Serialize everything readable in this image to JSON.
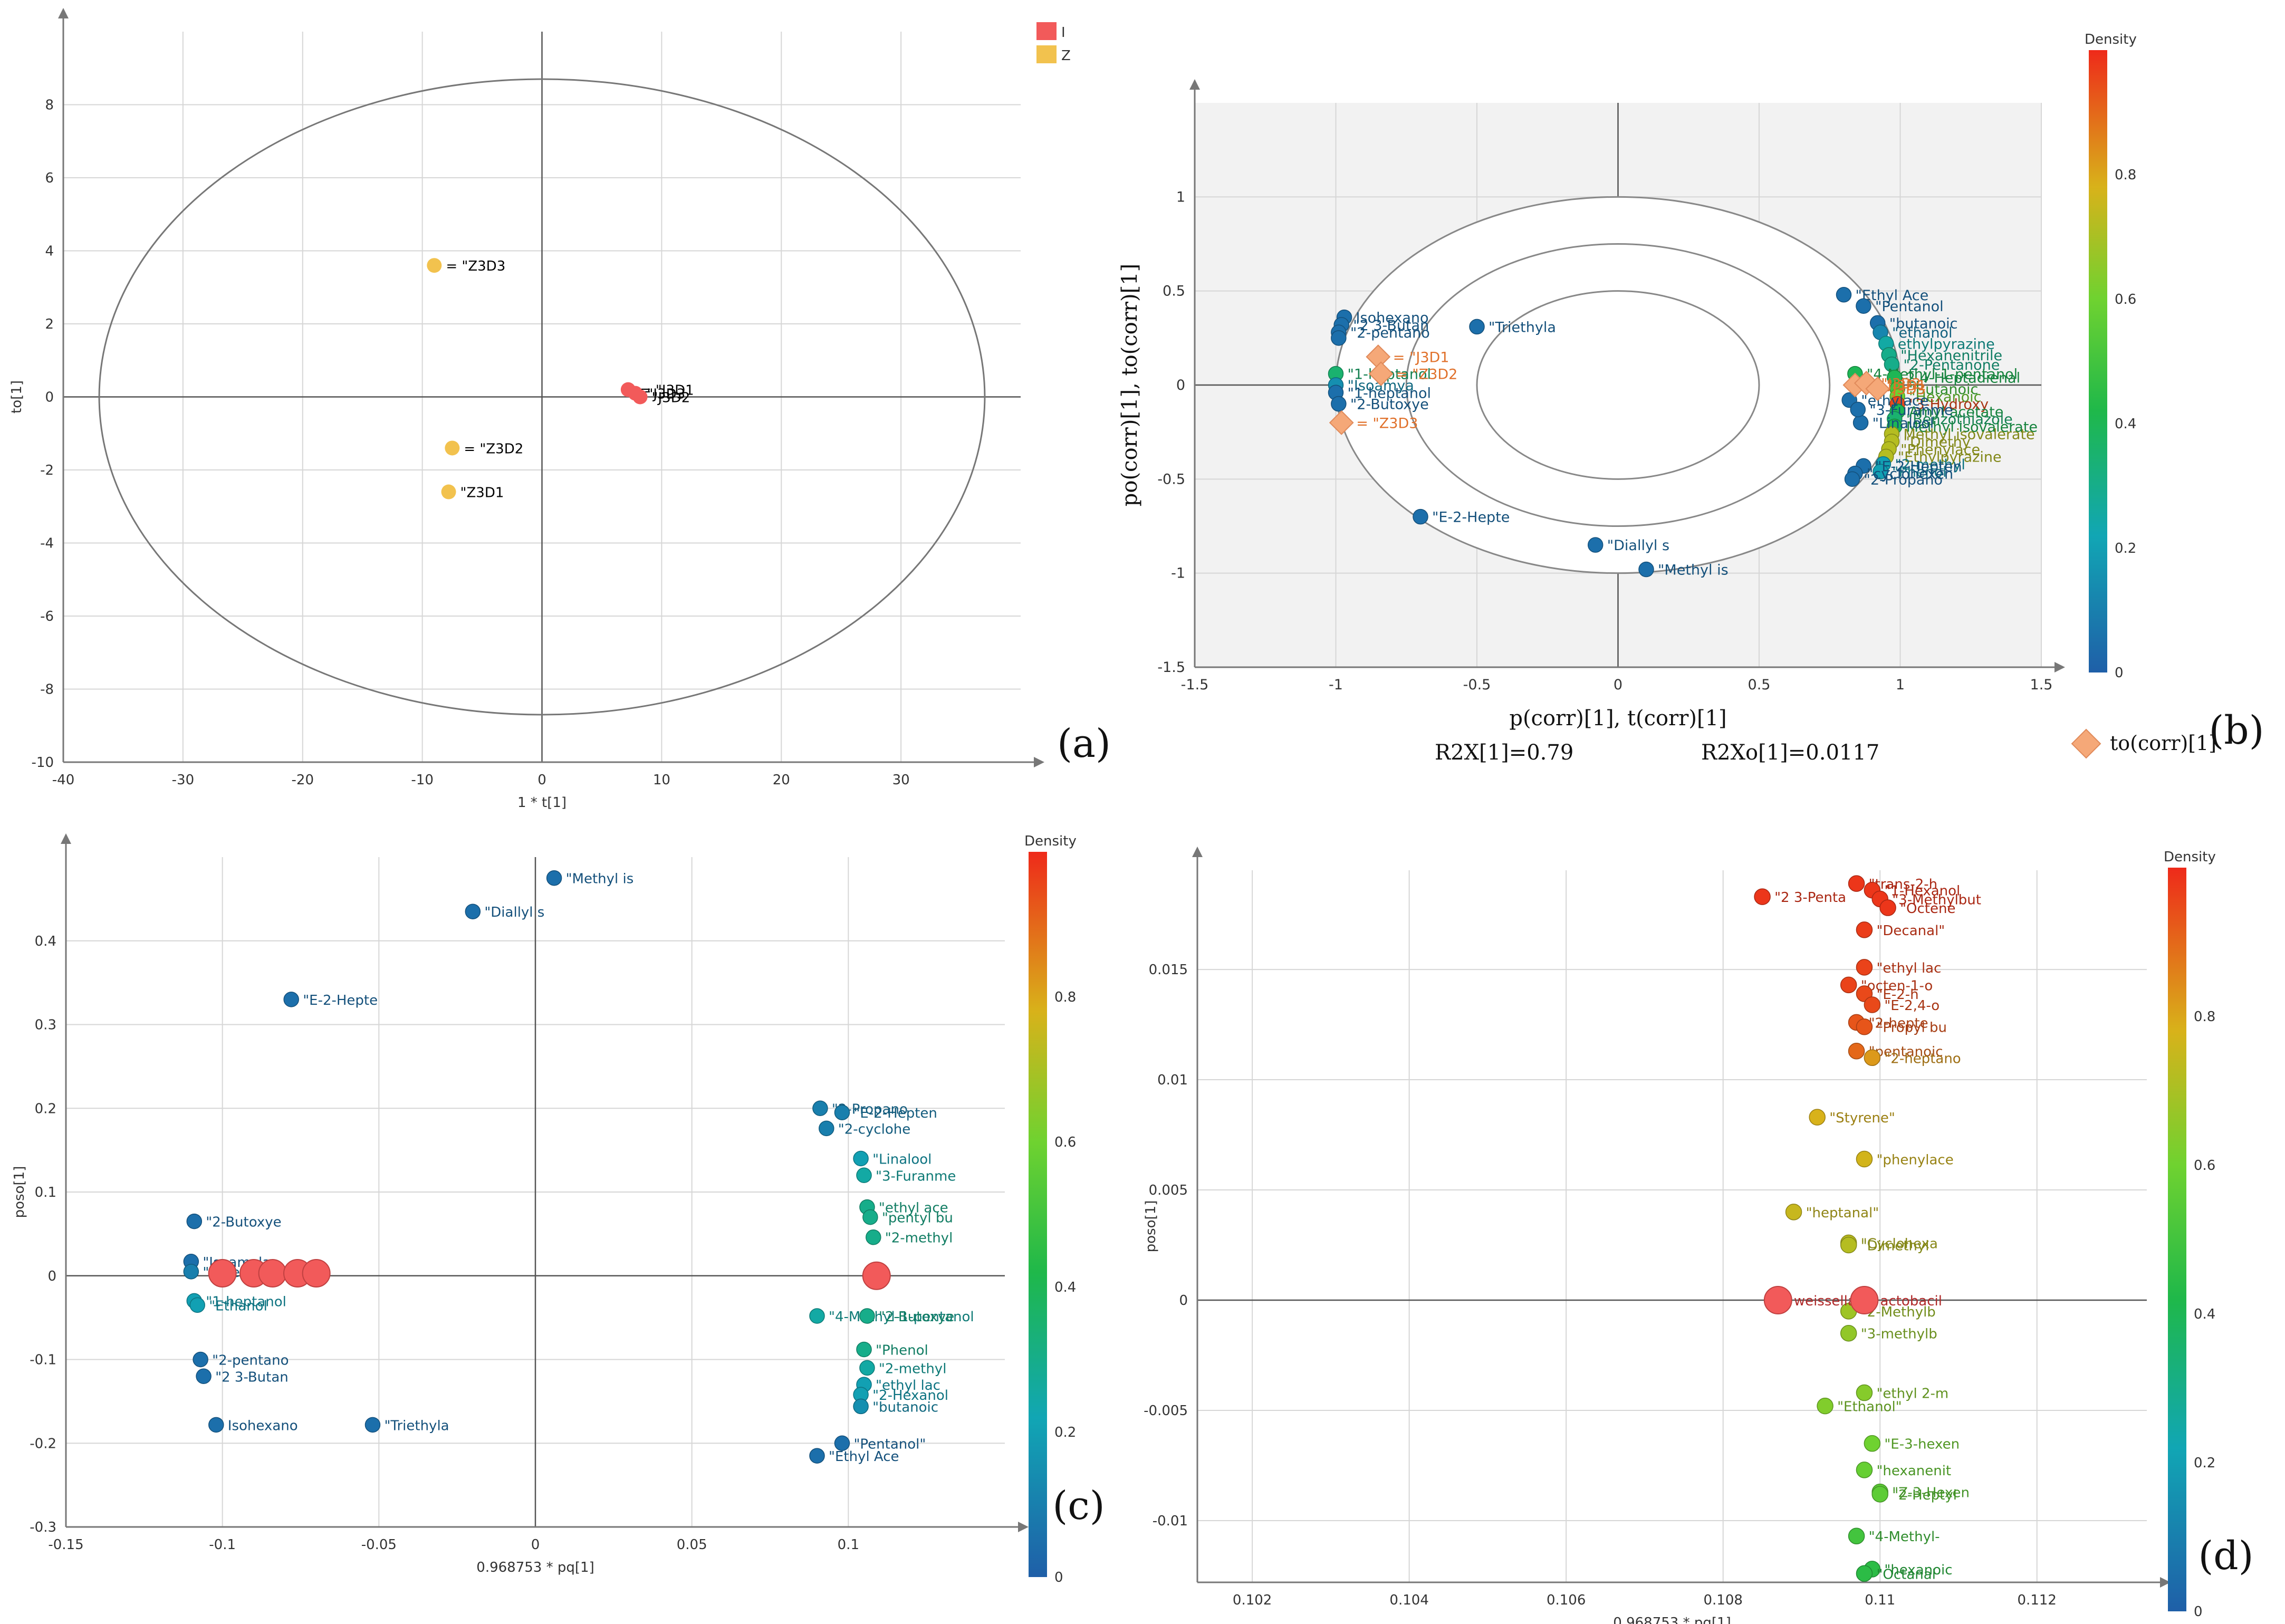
{
  "colors": {
    "I": "#f25a5a",
    "Z": "#f2c24e",
    "diamond": "#f5a878",
    "axis": "#555555",
    "grid": "#d2d2d2"
  },
  "chart_data": [
    {
      "type": "scatter",
      "panel": "(a)",
      "xlabel": "1 * t[1]",
      "ylabel": "to[1]",
      "xlim": [
        -40,
        40
      ],
      "ylim": [
        -10,
        10
      ],
      "xticks": [
        "-40",
        "-30",
        "-20",
        "-10",
        "0",
        "10",
        "20",
        "30"
      ],
      "yticks": [
        "8",
        "6",
        "4",
        "2",
        "0",
        "-2",
        "-4",
        "-6",
        "-8",
        "-10"
      ],
      "legend": [
        {
          "name": "I",
          "color": "#f25a5a"
        },
        {
          "name": "Z",
          "color": "#f2c24e"
        }
      ],
      "ellipse": {
        "cx": 0,
        "cy": 0,
        "rx": 37,
        "ry": 8.7
      },
      "points": [
        {
          "x": -9,
          "y": 3.6,
          "label": "= \"Z3D3",
          "group": "Z"
        },
        {
          "x": -7.5,
          "y": -1.4,
          "label": "= \"Z3D2",
          "group": "Z"
        },
        {
          "x": -7.8,
          "y": -2.6,
          "label": "\"Z3D1",
          "group": "Z"
        },
        {
          "x": 7.2,
          "y": 0.2,
          "label": "= \"J3D1",
          "group": "I"
        },
        {
          "x": 7.8,
          "y": 0.1,
          "label": "\"J3D3",
          "group": "I"
        },
        {
          "x": 8.2,
          "y": 0.0,
          "label": "\"J3D2",
          "group": "I"
        }
      ]
    },
    {
      "type": "scatter",
      "panel": "(b)",
      "xlabel": "p(corr)[1], t(corr)[1]",
      "ylabel": "po(corr)[1], to(corr)[1]",
      "xlim": [
        -1.5,
        1.5
      ],
      "ylim": [
        -1.5,
        1.5
      ],
      "xticks": [
        "-1.5",
        "-1",
        "-0.5",
        "0",
        "0.5",
        "1",
        "1.5"
      ],
      "yticks": [
        "1",
        "0.5",
        "0",
        "-0.5",
        "-1",
        "-1.5"
      ],
      "stats": {
        "r2x": "R2X[1]=0.79",
        "r2xo": "R2Xo[1]=0.0117"
      },
      "colorbar": {
        "title": "Density",
        "ticks": [
          "0.8",
          "0.6",
          "0.4",
          "0.2",
          "0"
        ]
      },
      "legend": [
        {
          "name": "to(corr)[1]",
          "shape": "diamond"
        }
      ],
      "circles": [
        1.0,
        0.75,
        0.5
      ],
      "points": [
        {
          "x": -0.97,
          "y": 0.36,
          "label": "Isohexano",
          "density": 0.05
        },
        {
          "x": -0.98,
          "y": 0.32,
          "label": "\"2 3-Butan",
          "density": 0.05
        },
        {
          "x": -0.99,
          "y": 0.28,
          "label": "\"2-pentano",
          "density": 0.05
        },
        {
          "x": -0.99,
          "y": 0.25,
          "label": "",
          "density": 0.05
        },
        {
          "x": -1.0,
          "y": 0.06,
          "label": "\"1-heptanol",
          "density": 0.35
        },
        {
          "x": -1.0,
          "y": 0.0,
          "label": "\"Isoamya",
          "density": 0.15
        },
        {
          "x": -1.0,
          "y": -0.04,
          "label": "\"1-heptanol",
          "density": 0.05
        },
        {
          "x": -0.99,
          "y": -0.1,
          "label": "\"2-Butoxye",
          "density": 0.05
        },
        {
          "x": -0.5,
          "y": 0.31,
          "label": "\"Triethyla",
          "density": 0.05
        },
        {
          "x": -0.7,
          "y": -0.7,
          "label": "\"E-2-Hepte",
          "density": 0.05
        },
        {
          "x": -0.08,
          "y": -0.85,
          "label": "\"Diallyl s",
          "density": 0.05
        },
        {
          "x": 0.1,
          "y": -0.98,
          "label": "\"Methyl is",
          "density": 0.05
        },
        {
          "x": 0.8,
          "y": 0.48,
          "label": "\"Ethyl Ace",
          "density": 0.05
        },
        {
          "x": 0.87,
          "y": 0.42,
          "label": "\"Pentanol",
          "density": 0.05
        },
        {
          "x": 0.92,
          "y": 0.33,
          "label": "\"butanoic",
          "density": 0.05
        },
        {
          "x": 0.93,
          "y": 0.28,
          "label": "\"ethanol",
          "density": 0.12
        },
        {
          "x": 0.95,
          "y": 0.22,
          "label": "ethylpyrazine",
          "density": 0.25
        },
        {
          "x": 0.96,
          "y": 0.16,
          "label": "\"Hexanenitrile",
          "density": 0.3
        },
        {
          "x": 0.97,
          "y": 0.11,
          "label": "\"2-Pentanone",
          "density": 0.3
        },
        {
          "x": 0.84,
          "y": 0.06,
          "label": "\"4-Methyl-1-pentanol",
          "density": 0.4
        },
        {
          "x": 0.98,
          "y": 0.04,
          "label": "2,4-Heptadienal",
          "density": 0.4
        },
        {
          "x": 0.99,
          "y": -0.02,
          "label": "\"Butanoic",
          "density": 0.5
        },
        {
          "x": 0.99,
          "y": -0.06,
          "label": "\"Hexanoic",
          "density": 0.6
        },
        {
          "x": 0.99,
          "y": -0.1,
          "label": "\"3-Hydroxy",
          "density": 0.95
        },
        {
          "x": 0.99,
          "y": -0.14,
          "label": "Amyl acetate",
          "density": 0.4
        },
        {
          "x": 0.98,
          "y": -0.18,
          "label": "\"Benzothiazole",
          "density": 0.35
        },
        {
          "x": 0.98,
          "y": -0.22,
          "label": "Methyl isovalerate",
          "density": 0.4
        },
        {
          "x": 0.97,
          "y": -0.26,
          "label": "Methyl isovalerate",
          "density": 0.72
        },
        {
          "x": 0.97,
          "y": -0.3,
          "label": "\"Dimethy",
          "density": 0.72
        },
        {
          "x": 0.96,
          "y": -0.34,
          "label": "\"Phenylace",
          "density": 0.72
        },
        {
          "x": 0.95,
          "y": -0.38,
          "label": "\"Ethylpyrazine",
          "density": 0.72
        },
        {
          "x": 0.94,
          "y": -0.42,
          "label": "\"2-methyl",
          "density": 0.2
        },
        {
          "x": 0.93,
          "y": -0.46,
          "label": "\"Phenol",
          "density": 0.2
        },
        {
          "x": 0.86,
          "y": -0.2,
          "label": "\"Linalool",
          "density": 0.05
        },
        {
          "x": 0.87,
          "y": -0.43,
          "label": "\"E-2-Hepten",
          "density": 0.05
        },
        {
          "x": 0.84,
          "y": -0.47,
          "label": "\"cyclohexen",
          "density": 0.05
        },
        {
          "x": 0.83,
          "y": -0.5,
          "label": "\"2-Propano",
          "density": 0.05
        },
        {
          "x": 0.82,
          "y": -0.08,
          "label": "\"ethylace",
          "density": 0.05
        },
        {
          "x": 0.85,
          "y": -0.13,
          "label": "\"3-Furanme",
          "density": 0.05
        }
      ],
      "diamonds": [
        {
          "x": -0.85,
          "y": 0.15,
          "label": "= \"J3D1"
        },
        {
          "x": -0.84,
          "y": 0.06,
          "label": "= \"Z3D2"
        },
        {
          "x": -0.98,
          "y": -0.2,
          "label": "= \"Z3D3"
        },
        {
          "x": 0.84,
          "y": 0.0,
          "label": "= \"J3D1"
        },
        {
          "x": 0.88,
          "y": 0.01,
          "label": "\"J3D2"
        },
        {
          "x": 0.92,
          "y": -0.02,
          "label": "J3D3"
        }
      ]
    },
    {
      "type": "scatter",
      "panel": "(c)",
      "xlabel": "0.968753 * pq[1]",
      "ylabel": "poso[1]",
      "xlim": [
        -0.15,
        0.15
      ],
      "ylim": [
        -0.3,
        0.5
      ],
      "xticks": [
        "-0.15",
        "-0.1",
        "-0.05",
        "0",
        "0.05",
        "0.1"
      ],
      "yticks": [
        "0.4",
        "0.3",
        "0.2",
        "0.1",
        "0",
        "-0.1",
        "-0.2",
        "-0.3"
      ],
      "colorbar": {
        "title": "Density",
        "ticks": [
          "0.8",
          "0.6",
          "0.4",
          "0.2",
          "0"
        ]
      },
      "points": [
        {
          "x": 0.006,
          "y": 0.475,
          "label": "\"Methyl is",
          "density": 0.05
        },
        {
          "x": -0.02,
          "y": 0.435,
          "label": "\"Diallyl s",
          "density": 0.05
        },
        {
          "x": -0.078,
          "y": 0.33,
          "label": "\"E-2-Hepte",
          "density": 0.05
        },
        {
          "x": -0.109,
          "y": 0.065,
          "label": "\"2-Butoxye",
          "density": 0.05
        },
        {
          "x": -0.11,
          "y": 0.017,
          "label": "\"Isoamyla",
          "density": 0.05
        },
        {
          "x": -0.11,
          "y": 0.005,
          "label": "\"1-heptanol",
          "density": 0.1
        },
        {
          "x": -0.109,
          "y": -0.03,
          "label": "\"1-heptanol",
          "density": 0.2
        },
        {
          "x": -0.108,
          "y": -0.035,
          "label": "\"Ethanol",
          "density": 0.2
        },
        {
          "x": -0.107,
          "y": -0.1,
          "label": "\"2-pentano",
          "density": 0.05
        },
        {
          "x": -0.106,
          "y": -0.12,
          "label": "\"2 3-Butan",
          "density": 0.05
        },
        {
          "x": -0.102,
          "y": -0.178,
          "label": "Isohexano",
          "density": 0.05
        },
        {
          "x": -0.052,
          "y": -0.178,
          "label": "\"Triethyla",
          "density": 0.05
        },
        {
          "x": 0.091,
          "y": 0.2,
          "label": "\"2-Propano",
          "density": 0.1
        },
        {
          "x": 0.098,
          "y": 0.195,
          "label": "\"E-2-Hepten",
          "density": 0.1
        },
        {
          "x": 0.093,
          "y": 0.176,
          "label": "\"2-cyclohe",
          "density": 0.1
        },
        {
          "x": 0.104,
          "y": 0.14,
          "label": "\"Linalool",
          "density": 0.2
        },
        {
          "x": 0.105,
          "y": 0.12,
          "label": "\"3-Furanme",
          "density": 0.25
        },
        {
          "x": 0.106,
          "y": 0.082,
          "label": "\"ethyl ace",
          "density": 0.3
        },
        {
          "x": 0.107,
          "y": 0.07,
          "label": "\"pentyl bu",
          "density": 0.3
        },
        {
          "x": 0.108,
          "y": 0.046,
          "label": "\"2-methyl",
          "density": 0.3
        },
        {
          "x": 0.09,
          "y": -0.048,
          "label": "\"4-Methyl-1-pentanol",
          "density": 0.25
        },
        {
          "x": 0.106,
          "y": -0.048,
          "label": "\"2-Butoxye",
          "density": 0.3
        },
        {
          "x": 0.105,
          "y": -0.088,
          "label": "\"Phenol",
          "density": 0.3
        },
        {
          "x": 0.106,
          "y": -0.11,
          "label": "\"2-methyl",
          "density": 0.25
        },
        {
          "x": 0.105,
          "y": -0.13,
          "label": "\"ethyl lac",
          "density": 0.2
        },
        {
          "x": 0.104,
          "y": -0.142,
          "label": "\"2-Hexanol",
          "density": 0.2
        },
        {
          "x": 0.104,
          "y": -0.156,
          "label": "\"butanoic",
          "density": 0.15
        },
        {
          "x": 0.098,
          "y": -0.2,
          "label": "\"Pentanol\"",
          "density": 0.05
        },
        {
          "x": 0.09,
          "y": -0.215,
          "label": "\"Ethyl Ace",
          "density": 0.05
        }
      ],
      "highlights": [
        {
          "x": -0.1,
          "y": 0.003,
          "label": "",
          "group": "I"
        },
        {
          "x": -0.09,
          "y": 0.003,
          "label": "",
          "group": "I"
        },
        {
          "x": -0.084,
          "y": 0.003,
          "label": "",
          "group": "I"
        },
        {
          "x": -0.076,
          "y": 0.003,
          "label": "",
          "group": "I"
        },
        {
          "x": -0.07,
          "y": 0.003,
          "label": "",
          "group": "I"
        },
        {
          "x": 0.109,
          "y": 0.0,
          "label": "",
          "group": "I"
        }
      ]
    },
    {
      "type": "scatter",
      "panel": "(d)",
      "xlabel": "0.968753 * pq[1]",
      "ylabel": "poso[1]",
      "xlim": [
        0.1013,
        0.1134
      ],
      "ylim": [
        -0.0128,
        0.0195
      ],
      "xticks": [
        "0.102",
        "0.104",
        "0.106",
        "0.108",
        "0.11",
        "0.112"
      ],
      "yticks": [
        "0.015",
        "0.01",
        "0.005",
        "0",
        "-0.005",
        "-0.01"
      ],
      "colorbar": {
        "title": "Density",
        "ticks": [
          "0.8",
          "0.6",
          "0.4",
          "0.2",
          "0"
        ]
      },
      "points": [
        {
          "x": 0.1085,
          "y": 0.0183,
          "label": "\"2 3-Penta",
          "density": 0.98
        },
        {
          "x": 0.1097,
          "y": 0.0189,
          "label": "\"trans-2-h",
          "density": 0.98
        },
        {
          "x": 0.1099,
          "y": 0.0186,
          "label": "\"1-Hexanol",
          "density": 0.98
        },
        {
          "x": 0.11,
          "y": 0.0182,
          "label": "\"3-Methylbut",
          "density": 0.98
        },
        {
          "x": 0.1101,
          "y": 0.0178,
          "label": "\"Octene",
          "density": 0.98
        },
        {
          "x": 0.1098,
          "y": 0.0168,
          "label": "\"Decanal\"",
          "density": 0.97
        },
        {
          "x": 0.1098,
          "y": 0.0151,
          "label": "\"ethyl lac",
          "density": 0.96
        },
        {
          "x": 0.1096,
          "y": 0.0143,
          "label": "\"octen-1-o",
          "density": 0.96
        },
        {
          "x": 0.1098,
          "y": 0.0139,
          "label": "\"E-2-h",
          "density": 0.95
        },
        {
          "x": 0.1099,
          "y": 0.0134,
          "label": "\"E-2,4-o",
          "density": 0.95
        },
        {
          "x": 0.1097,
          "y": 0.0126,
          "label": "\"2-hepte",
          "density": 0.93
        },
        {
          "x": 0.1098,
          "y": 0.0124,
          "label": "\"Propyl bu",
          "density": 0.93
        },
        {
          "x": 0.1097,
          "y": 0.0113,
          "label": "\"pentanoic",
          "density": 0.9
        },
        {
          "x": 0.1099,
          "y": 0.011,
          "label": "\"2-heptano",
          "density": 0.82
        },
        {
          "x": 0.1092,
          "y": 0.0083,
          "label": "\"Styrene\"",
          "density": 0.78
        },
        {
          "x": 0.1098,
          "y": 0.0064,
          "label": "\"phenylace",
          "density": 0.77
        },
        {
          "x": 0.1089,
          "y": 0.004,
          "label": "\"heptanal\"",
          "density": 0.75
        },
        {
          "x": 0.1096,
          "y": 0.0026,
          "label": "\"Cyclohexa",
          "density": 0.73
        },
        {
          "x": 0.1096,
          "y": 0.0025,
          "label": "\"Dimethyl",
          "density": 0.72
        },
        {
          "x": 0.1096,
          "y": -0.0005,
          "label": "\"2-Methylb",
          "density": 0.68
        },
        {
          "x": 0.1096,
          "y": -0.0015,
          "label": "\"3-methylb",
          "density": 0.66
        },
        {
          "x": 0.1098,
          "y": -0.0042,
          "label": "\"ethyl 2-m",
          "density": 0.64
        },
        {
          "x": 0.1093,
          "y": -0.0048,
          "label": "\"Ethanol\"",
          "density": 0.63
        },
        {
          "x": 0.1099,
          "y": -0.0065,
          "label": "\"E-3-hexen",
          "density": 0.6
        },
        {
          "x": 0.1098,
          "y": -0.0077,
          "label": "\"hexanenit",
          "density": 0.58
        },
        {
          "x": 0.11,
          "y": -0.0087,
          "label": "\"Z-3-Hexen",
          "density": 0.56
        },
        {
          "x": 0.11,
          "y": -0.0088,
          "label": "\"2-Heptyl",
          "density": 0.56
        },
        {
          "x": 0.1097,
          "y": -0.0107,
          "label": "\"4-Methyl-",
          "density": 0.5
        },
        {
          "x": 0.1099,
          "y": -0.0122,
          "label": "\"hexanoic",
          "density": 0.45
        },
        {
          "x": 0.1098,
          "y": -0.0124,
          "label": "\"Octanal",
          "density": 0.45
        }
      ],
      "highlights": [
        {
          "x": 0.1087,
          "y": 0.0,
          "label": "weissella",
          "group": "I"
        },
        {
          "x": 0.1098,
          "y": 0.0,
          "label": "actobacil",
          "group": "I"
        }
      ]
    }
  ]
}
